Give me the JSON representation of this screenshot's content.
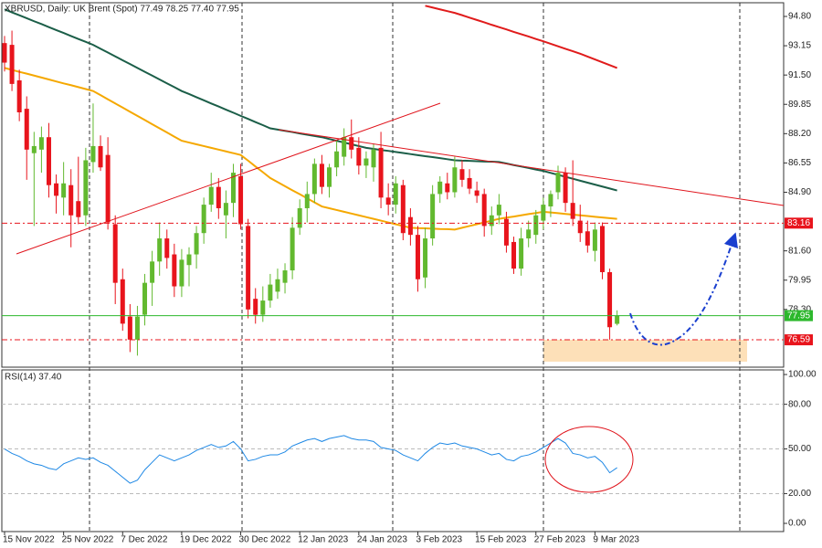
{
  "chart_data": [
    {
      "type": "candlestick",
      "title": "XBRUSD, Daily:  UK Brent (Spot)  77.49 78.25 77.40 77.95",
      "categories": [
        "15 Nov 2022",
        null,
        null,
        null,
        null,
        null,
        null,
        null,
        "25 Nov 2022",
        null,
        null,
        null,
        null,
        null,
        null,
        null,
        "7 Dec 2022",
        null,
        null,
        null,
        null,
        null,
        null,
        null,
        "19 Dec 2022",
        null,
        null,
        null,
        null,
        null,
        null,
        null,
        "30 Dec 2022",
        null,
        null,
        null,
        null,
        null,
        null,
        null,
        "12 Jan 2023",
        null,
        null,
        null,
        null,
        null,
        null,
        null,
        "24 Jan 2023",
        null,
        null,
        null,
        null,
        null,
        null,
        null,
        "3 Feb 2023",
        null,
        null,
        null,
        null,
        null,
        null,
        null,
        "15 Feb 2023",
        null,
        null,
        null,
        null,
        null,
        null,
        null,
        "27 Feb 2023",
        null,
        null,
        null,
        null,
        null,
        null,
        null,
        "9 Mar 2023",
        null,
        null,
        null
      ],
      "open": [
        93.3,
        93.2,
        91.2,
        89.6,
        87.1,
        87.3,
        88.0,
        85.4,
        84.6,
        85.3,
        84.4,
        83.6,
        86.6,
        87.5,
        87.0,
        83.1,
        80.0,
        77.9,
        76.6,
        78.0,
        79.8,
        81.0,
        82.3,
        81.4,
        79.6,
        80.8,
        81.4,
        82.6,
        84.2,
        85.2,
        83.6,
        84.3,
        85.8,
        83.0,
        78.9,
        78.0,
        78.8,
        79.3,
        79.8,
        80.5,
        82.9,
        84.0,
        84.8,
        86.5,
        85.2,
        86.3,
        86.9,
        88.0,
        87.4,
        86.4,
        86.3,
        87.4,
        84.6,
        84.2,
        85.3,
        83.5,
        82.5,
        80.1,
        82.3,
        84.8,
        85.4,
        84.9,
        86.2,
        85.7,
        85.0,
        84.8,
        83.0,
        83.6,
        83.4,
        82.1,
        80.6,
        82.3,
        82.5,
        83.3,
        84.1,
        84.9,
        86.0,
        84.3,
        83.3,
        82.7,
        81.6,
        83.0,
        80.4,
        77.49
      ],
      "high": [
        93.7,
        94.0,
        91.8,
        90.3,
        88.3,
        88.6,
        88.8,
        85.9,
        86.6,
        86.2,
        86.9,
        87.4,
        89.9,
        88.1,
        88.0,
        83.6,
        80.6,
        78.6,
        78.5,
        80.3,
        81.6,
        83.2,
        82.8,
        82.0,
        81.7,
        81.8,
        83.0,
        84.6,
        86.0,
        85.7,
        85.0,
        86.5,
        86.5,
        83.4,
        79.5,
        79.6,
        80.3,
        80.6,
        80.9,
        83.5,
        84.5,
        85.5,
        86.8,
        87.0,
        86.5,
        87.8,
        88.5,
        89.0,
        88.0,
        87.2,
        87.6,
        88.3,
        85.4,
        85.8,
        85.6,
        84.0,
        83.0,
        82.9,
        85.3,
        85.8,
        86.0,
        86.9,
        86.7,
        86.2,
        85.5,
        85.1,
        84.1,
        84.8,
        83.8,
        82.4,
        82.9,
        83.3,
        83.9,
        84.6,
        85.0,
        86.4,
        86.3,
        86.7,
        84.2,
        83.3,
        83.2,
        83.2,
        80.6,
        78.25
      ],
      "low": [
        91.7,
        90.6,
        88.9,
        85.6,
        83.0,
        86.0,
        84.6,
        83.7,
        83.6,
        81.8,
        83.1,
        83.0,
        86.0,
        86.1,
        82.8,
        78.6,
        77.1,
        75.9,
        75.7,
        77.4,
        78.5,
        80.2,
        80.6,
        79.0,
        79.0,
        79.6,
        80.6,
        82.0,
        83.8,
        83.4,
        82.3,
        83.5,
        82.8,
        77.8,
        77.5,
        77.6,
        78.4,
        78.9,
        79.2,
        80.0,
        82.5,
        83.2,
        84.3,
        84.8,
        84.6,
        85.8,
        86.4,
        86.8,
        85.9,
        85.7,
        85.5,
        84.0,
        83.6,
        83.7,
        82.2,
        81.9,
        79.3,
        79.5,
        81.9,
        84.3,
        84.5,
        84.6,
        85.2,
        84.8,
        84.3,
        82.4,
        82.5,
        83.1,
        81.5,
        80.3,
        80.2,
        81.8,
        82.0,
        82.8,
        83.5,
        84.5,
        83.8,
        83.0,
        82.1,
        81.5,
        81.0,
        80.0,
        76.6,
        77.4
      ],
      "close": [
        92.2,
        91.0,
        89.4,
        87.3,
        87.5,
        88.0,
        85.3,
        84.7,
        85.4,
        83.6,
        83.5,
        86.7,
        87.5,
        86.3,
        83.2,
        79.8,
        77.5,
        76.6,
        77.9,
        79.8,
        81.0,
        82.3,
        81.2,
        79.6,
        81.1,
        81.4,
        82.6,
        84.2,
        85.2,
        84.0,
        84.3,
        86.0,
        83.1,
        78.3,
        78.0,
        78.8,
        79.7,
        80.0,
        80.5,
        82.9,
        84.0,
        84.8,
        86.5,
        85.2,
        86.3,
        87.2,
        88.0,
        87.3,
        86.4,
        86.8,
        87.3,
        84.6,
        84.2,
        85.4,
        82.6,
        82.5,
        80.0,
        82.3,
        84.8,
        85.5,
        84.9,
        86.3,
        85.6,
        85.1,
        84.7,
        83.0,
        83.6,
        84.2,
        81.9,
        80.6,
        82.3,
        82.8,
        83.6,
        84.2,
        84.8,
        86.0,
        84.3,
        83.4,
        82.6,
        81.9,
        82.8,
        80.4,
        77.3,
        77.95
      ],
      "up_color": "#62b92f",
      "down_color": "#e8141c",
      "ylim": [
        75.05,
        95.52
      ],
      "yticks": [
        {
          "value": 94.8,
          "label": "94.80"
        },
        93.15,
        {
          "value": 91.5,
          "label": "91.50"
        },
        89.85,
        {
          "value": 88.2,
          "label": "88.20"
        },
        86.55,
        {
          "value": 84.9,
          "label": "84.90"
        },
        {
          "value": 81.6,
          "label": "81.60"
        },
        79.95,
        {
          "value": 78.3,
          "label": "78.30"
        }
      ],
      "lines": [
        {
          "color": "#1b5e48",
          "values": [
            95.2,
            95.03,
            94.87,
            94.7,
            94.53,
            94.37,
            94.2,
            94.03,
            93.87,
            93.7,
            93.53,
            93.37,
            93.2,
            92.98,
            92.77,
            92.55,
            92.33,
            92.12,
            91.9,
            91.68,
            91.47,
            91.25,
            91.03,
            90.82,
            90.6,
            90.43,
            90.25,
            90.08,
            89.9,
            89.73,
            89.55,
            89.38,
            89.2,
            89.03,
            88.85,
            88.68,
            88.5,
            88.43,
            88.36,
            88.29,
            88.21,
            88.14,
            88.07,
            88.0,
            87.9,
            87.8,
            87.7,
            87.6,
            87.5,
            87.4,
            87.34,
            87.28,
            87.23,
            87.17,
            87.11,
            87.05,
            86.99,
            86.93,
            86.88,
            86.82,
            86.76,
            86.7,
            86.68,
            86.67,
            86.65,
            86.63,
            86.62,
            86.6,
            86.52,
            86.43,
            86.35,
            86.27,
            86.18,
            86.1,
            85.99,
            85.88,
            85.77,
            85.66,
            85.55,
            85.44,
            85.33,
            85.22,
            85.11,
            85.0
          ]
        },
        {
          "color": "#f5a800",
          "values": [
            91.9,
            91.79,
            91.68,
            91.58,
            91.47,
            91.36,
            91.25,
            91.14,
            91.03,
            90.93,
            90.82,
            90.71,
            90.6,
            90.37,
            90.13,
            89.9,
            89.67,
            89.43,
            89.2,
            88.97,
            88.73,
            88.5,
            88.27,
            88.03,
            87.8,
            87.7,
            87.6,
            87.5,
            87.4,
            87.3,
            87.2,
            87.1,
            87.0,
            86.68,
            86.35,
            86.03,
            85.7,
            85.47,
            85.24,
            85.01,
            84.79,
            84.56,
            84.33,
            84.1,
            84.0,
            83.9,
            83.8,
            83.7,
            83.6,
            83.5,
            83.4,
            83.3,
            83.2,
            83.1,
            83.0,
            82.9,
            82.88,
            82.87,
            82.85,
            82.83,
            82.82,
            82.8,
            82.9,
            83.0,
            83.1,
            83.2,
            83.3,
            83.4,
            83.47,
            83.53,
            83.6,
            83.67,
            83.73,
            83.8,
            83.76,
            83.72,
            83.68,
            83.64,
            83.6,
            83.56,
            83.52,
            83.48,
            83.44,
            83.4
          ]
        },
        {
          "color": "#e01b1b",
          "values": [
            null,
            null,
            null,
            null,
            null,
            null,
            null,
            null,
            null,
            null,
            null,
            null,
            null,
            null,
            null,
            null,
            null,
            null,
            null,
            null,
            null,
            null,
            null,
            null,
            null,
            null,
            null,
            null,
            null,
            null,
            null,
            null,
            null,
            null,
            null,
            null,
            null,
            null,
            null,
            null,
            null,
            null,
            null,
            null,
            null,
            null,
            null,
            null,
            null,
            null,
            null,
            null,
            null,
            null,
            null,
            null,
            null,
            95.4,
            95.3,
            95.2,
            95.1,
            95.0,
            94.87,
            94.73,
            94.6,
            94.47,
            94.33,
            94.2,
            94.07,
            93.93,
            93.8,
            93.67,
            93.53,
            93.4,
            93.26,
            93.12,
            92.98,
            92.84,
            92.7,
            92.54,
            92.38,
            92.22,
            92.06,
            91.9
          ]
        }
      ],
      "hlines": [
        {
          "value": 83.16,
          "color": "#e8141c",
          "dashed": true
        },
        {
          "value": 77.95,
          "color": "#2db82d",
          "dashed": false
        },
        {
          "value": 76.59,
          "color": "#e8141c",
          "dashed": true
        }
      ]
    },
    {
      "type": "line",
      "title": "RSI(14) 37.40",
      "values": [
        50,
        47,
        45,
        42,
        40,
        39,
        37,
        36,
        40,
        42,
        44,
        43,
        44,
        41,
        39,
        35,
        31,
        27,
        29,
        36,
        41,
        46,
        44,
        42,
        44,
        46,
        49,
        51,
        53,
        51,
        52,
        55,
        50,
        42,
        43,
        45,
        46,
        46,
        48,
        52,
        54,
        56,
        57,
        55,
        57,
        58,
        59,
        57,
        56,
        56,
        55,
        51,
        50,
        49,
        46,
        44,
        42,
        47,
        51,
        54,
        53,
        54,
        52,
        51,
        50,
        48,
        46,
        47,
        43,
        42,
        45,
        46,
        48,
        51,
        54,
        57,
        54,
        47,
        46,
        44,
        45,
        41,
        34,
        37.4
      ],
      "color": "#1e88e5",
      "ylim": [
        -5.5,
        103.1
      ],
      "yticks": [
        {
          "value": 100,
          "label": "100.00"
        },
        {
          "value": 80,
          "label": "80.00"
        },
        {
          "value": 50,
          "label": "50.00"
        },
        {
          "value": 20,
          "label": "20.00"
        },
        {
          "value": 0,
          "label": "0.00"
        }
      ],
      "levels": [
        80,
        50,
        20
      ]
    }
  ]
}
